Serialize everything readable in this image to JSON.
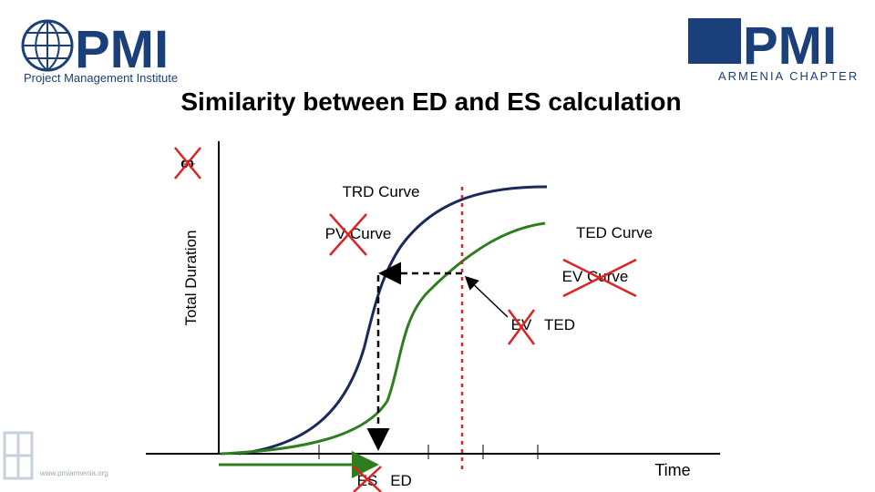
{
  "header": {
    "left_logo": {
      "mark": "PMI",
      "name": "Project Management Institute"
    },
    "right_logo": {
      "mark": "PMI",
      "name": "ARMENIA CHAPTER"
    },
    "title": "Similarity between ED and ES calculation"
  },
  "diagram": {
    "y_axis_old": "$",
    "y_axis": "Total Duration",
    "x_axis": "Time",
    "labels": {
      "trd": "TRD Curve",
      "pv": "PV Curve",
      "ted": "TED Curve",
      "ev_curve": "EV Curve",
      "ev": "EV",
      "ted_point": "TED",
      "es": "ES",
      "ed": "ED"
    }
  },
  "footer": {
    "url": "www.pmiarmenia.org"
  }
}
